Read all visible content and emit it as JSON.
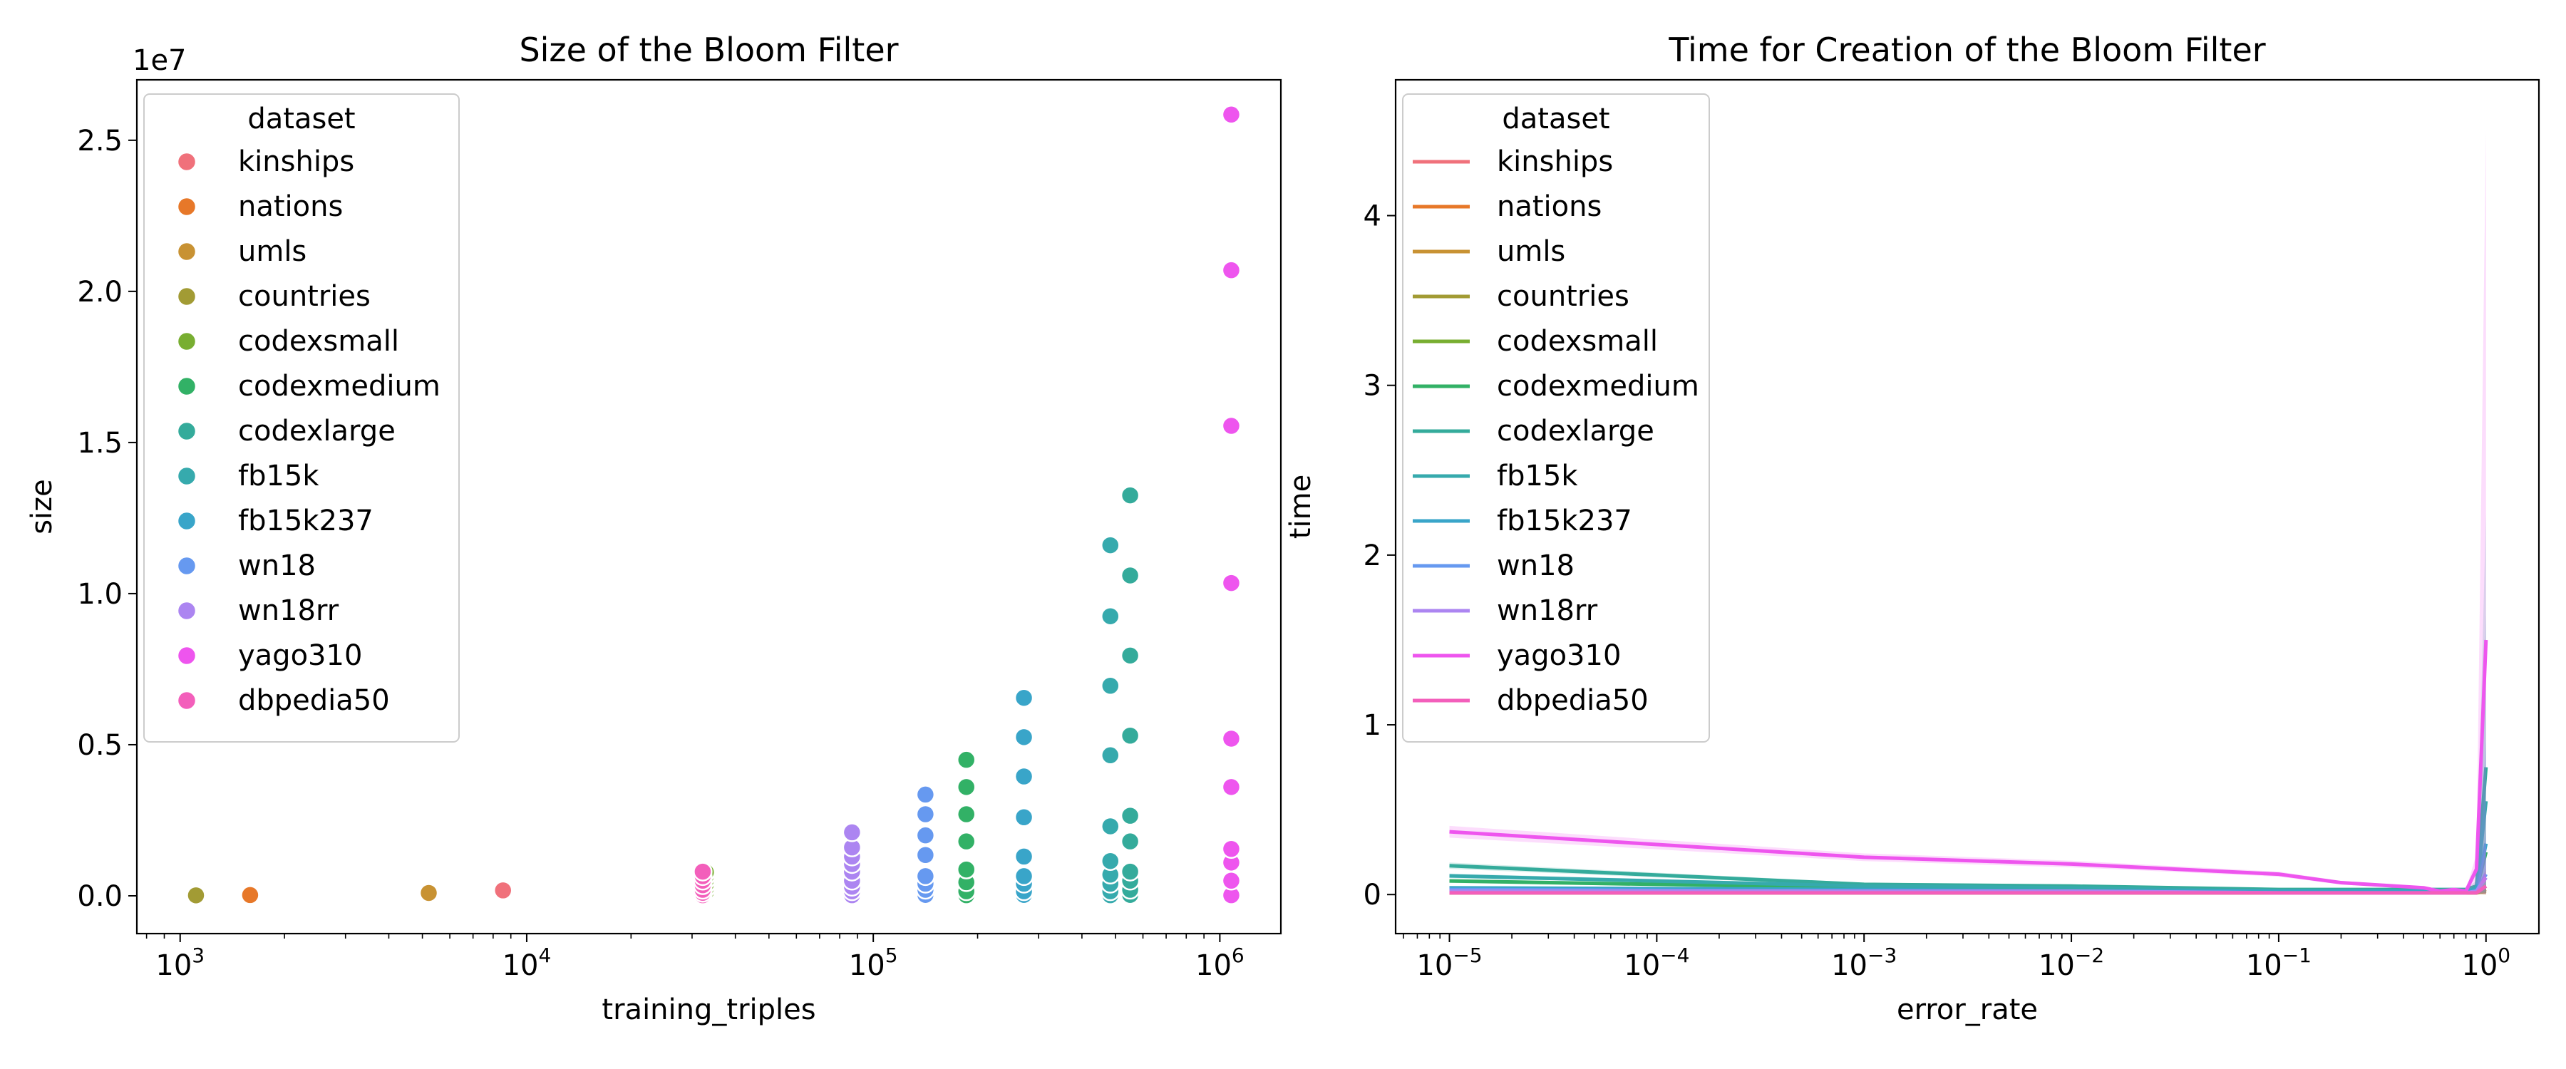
{
  "chart_data": [
    {
      "type": "scatter",
      "title": "Size of the Bloom Filter",
      "xlabel": "training_triples",
      "ylabel": "size",
      "xscale": "log",
      "xlim": [
        750,
        1500000
      ],
      "ylim": [
        -1250000,
        27000000
      ],
      "offset_text": "1e7",
      "x_ticks": [
        {
          "base": "10",
          "exp": "3",
          "value": 1000
        },
        {
          "base": "10",
          "exp": "4",
          "value": 10000
        },
        {
          "base": "10",
          "exp": "5",
          "value": 100000
        },
        {
          "base": "10",
          "exp": "6",
          "value": 1000000
        }
      ],
      "y_ticks": [
        {
          "label": "0.0",
          "value": 0
        },
        {
          "label": "0.5",
          "value": 5000000
        },
        {
          "label": "1.0",
          "value": 10000000
        },
        {
          "label": "1.5",
          "value": 15000000
        },
        {
          "label": "2.0",
          "value": 20000000
        },
        {
          "label": "2.5",
          "value": 25000000
        }
      ],
      "legend": {
        "title": "dataset",
        "placement": "upper-left"
      },
      "series": [
        {
          "name": "kinships",
          "color": "#f0717b",
          "x": 8544,
          "y": [
            180000
          ]
        },
        {
          "name": "nations",
          "color": "#e77829",
          "x": 1592,
          "y": [
            25000
          ]
        },
        {
          "name": "umls",
          "color": "#c89233",
          "x": 5216,
          "y": [
            95000
          ]
        },
        {
          "name": "countries",
          "color": "#a29b34",
          "x": 1111,
          "y": [
            15000
          ]
        },
        {
          "name": "codexsmall",
          "color": "#78ae31",
          "x": 32888,
          "y": [
            20000,
            60000,
            120000,
            250000,
            380000,
            520000,
            650000,
            780000
          ]
        },
        {
          "name": "codexmedium",
          "color": "#32b166",
          "x": 185584,
          "y": [
            20000,
            150000,
            450000,
            870000,
            1800000,
            2700000,
            3600000,
            4500000
          ]
        },
        {
          "name": "codexlarge",
          "color": "#34ab9b",
          "x": 551193,
          "y": [
            30000,
            200000,
            500000,
            800000,
            1800000,
            2650000,
            5300000,
            7950000,
            10600000,
            13250000
          ]
        },
        {
          "name": "fb15k",
          "color": "#36aaad",
          "x": 483142,
          "y": [
            20000,
            150000,
            400000,
            700000,
            1150000,
            2300000,
            4650000,
            6950000,
            9250000,
            11600000
          ]
        },
        {
          "name": "fb15k237",
          "color": "#39a5c9",
          "x": 272115,
          "y": [
            30000,
            150000,
            400000,
            650000,
            1300000,
            2600000,
            3950000,
            5250000,
            6550000
          ]
        },
        {
          "name": "wn18",
          "color": "#6699f0",
          "x": 141442,
          "y": [
            30000,
            200000,
            400000,
            650000,
            1350000,
            2000000,
            2700000,
            3350000
          ]
        },
        {
          "name": "wn18rr",
          "color": "#ac85f1",
          "x": 86835,
          "y": [
            20000,
            150000,
            300000,
            500000,
            800000,
            1050000,
            1300000,
            1600000,
            2100000
          ]
        },
        {
          "name": "yago310",
          "color": "#ee55ee",
          "x": 1079040,
          "y": [
            20000,
            500000,
            1100000,
            1550000,
            3600000,
            5200000,
            10350000,
            15550000,
            20700000,
            25850000
          ]
        },
        {
          "name": "dbpedia50",
          "color": "#f35fbb",
          "x": 32203,
          "y": [
            20000,
            100000,
            200000,
            350000,
            500000,
            650000,
            800000
          ]
        }
      ]
    },
    {
      "type": "line",
      "title": "Time for Creation of the Bloom Filter",
      "xlabel": "error_rate",
      "ylabel": "time",
      "xscale": "log",
      "xlim": [
        5.5e-06,
        1.8
      ],
      "ylim": [
        -0.23,
        4.8
      ],
      "x_ticks": [
        {
          "base": "10",
          "exp": "−5",
          "value": 1e-05
        },
        {
          "base": "10",
          "exp": "−4",
          "value": 0.0001
        },
        {
          "base": "10",
          "exp": "−3",
          "value": 0.001
        },
        {
          "base": "10",
          "exp": "−2",
          "value": 0.01
        },
        {
          "base": "10",
          "exp": "−1",
          "value": 0.1
        },
        {
          "base": "10",
          "exp": "0",
          "value": 1
        }
      ],
      "y_ticks": [
        {
          "label": "0",
          "value": 0
        },
        {
          "label": "1",
          "value": 1
        },
        {
          "label": "2",
          "value": 2
        },
        {
          "label": "3",
          "value": 3
        },
        {
          "label": "4",
          "value": 4
        }
      ],
      "legend": {
        "title": "dataset",
        "placement": "upper-left"
      },
      "x": [
        1e-05,
        0.001,
        0.01,
        0.1,
        0.2,
        0.5,
        0.6,
        0.7,
        0.8,
        0.9,
        1.0
      ],
      "series": [
        {
          "name": "kinships",
          "color": "#f0717b",
          "y": [
            0.01,
            0.01,
            0.01,
            0.01,
            0.01,
            0.01,
            0.01,
            0.01,
            0.01,
            0.01,
            0.03
          ]
        },
        {
          "name": "nations",
          "color": "#e77829",
          "y": [
            0.01,
            0.01,
            0.01,
            0.01,
            0.01,
            0.01,
            0.01,
            0.01,
            0.01,
            0.01,
            0.02
          ]
        },
        {
          "name": "umls",
          "color": "#c89233",
          "y": [
            0.01,
            0.01,
            0.01,
            0.01,
            0.01,
            0.01,
            0.01,
            0.01,
            0.01,
            0.01,
            0.03
          ]
        },
        {
          "name": "countries",
          "color": "#a29b34",
          "y": [
            0.01,
            0.01,
            0.01,
            0.01,
            0.01,
            0.01,
            0.01,
            0.01,
            0.01,
            0.01,
            0.02
          ]
        },
        {
          "name": "codexsmall",
          "color": "#78ae31",
          "y": [
            0.02,
            0.01,
            0.01,
            0.01,
            0.01,
            0.01,
            0.01,
            0.01,
            0.01,
            0.01,
            0.05
          ]
        },
        {
          "name": "codexmedium",
          "color": "#32b166",
          "y": [
            0.08,
            0.04,
            0.03,
            0.02,
            0.02,
            0.02,
            0.02,
            0.02,
            0.02,
            0.03,
            0.25
          ]
        },
        {
          "name": "codexlarge",
          "color": "#34ab9b",
          "y": [
            0.17,
            0.06,
            0.05,
            0.03,
            0.03,
            0.03,
            0.03,
            0.03,
            0.03,
            0.05,
            0.75
          ]
        },
        {
          "name": "fb15k",
          "color": "#36aaad",
          "y": [
            0.11,
            0.05,
            0.04,
            0.02,
            0.02,
            0.02,
            0.02,
            0.02,
            0.02,
            0.04,
            0.55
          ]
        },
        {
          "name": "fb15k237",
          "color": "#39a5c9",
          "y": [
            0.04,
            0.03,
            0.02,
            0.02,
            0.02,
            0.02,
            0.02,
            0.02,
            0.02,
            0.03,
            0.3
          ]
        },
        {
          "name": "wn18",
          "color": "#6699f0",
          "y": [
            0.03,
            0.02,
            0.02,
            0.01,
            0.01,
            0.01,
            0.01,
            0.01,
            0.01,
            0.02,
            0.12
          ]
        },
        {
          "name": "wn18rr",
          "color": "#ac85f1",
          "y": [
            0.02,
            0.02,
            0.02,
            0.01,
            0.01,
            0.01,
            0.01,
            0.01,
            0.01,
            0.02,
            0.1
          ]
        },
        {
          "name": "yago310",
          "color": "#ee55ee",
          "y": [
            0.37,
            0.22,
            0.18,
            0.12,
            0.07,
            0.04,
            0.02,
            0.03,
            0.02,
            0.15,
            1.5
          ]
        },
        {
          "name": "dbpedia50",
          "color": "#f35fbb",
          "y": [
            0.01,
            0.01,
            0.01,
            0.01,
            0.01,
            0.01,
            0.01,
            0.01,
            0.01,
            0.01,
            0.05
          ]
        }
      ]
    }
  ]
}
